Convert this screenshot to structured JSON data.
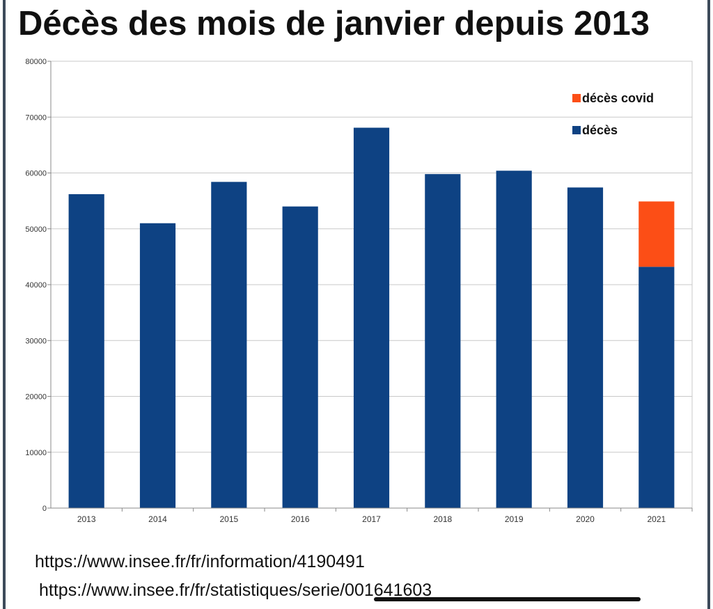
{
  "title": "Décès des mois de janvier depuis 2013",
  "sources": [
    "https://www.insee.fr/fr/information/4190491",
    "https://www.insee.fr/fr/statistiques/serie/001641603"
  ],
  "colors": {
    "deces": "#0e4283",
    "deces_covid": "#fc4e16",
    "grid": "#c8c8c8",
    "axis": "#888888"
  },
  "chart_data": {
    "type": "bar",
    "stacked": true,
    "title": "Décès des mois de janvier depuis 2013",
    "xlabel": "",
    "ylabel": "",
    "categories": [
      "2013",
      "2014",
      "2015",
      "2016",
      "2017",
      "2018",
      "2019",
      "2020",
      "2021"
    ],
    "series": [
      {
        "name": "décès",
        "color": "#0e4283",
        "values": [
          56200,
          51000,
          58400,
          54000,
          68100,
          59800,
          60400,
          57400,
          43200
        ]
      },
      {
        "name": "décès covid",
        "color": "#fc4e16",
        "values": [
          0,
          0,
          0,
          0,
          0,
          0,
          0,
          0,
          11700
        ]
      }
    ],
    "ylim": [
      0,
      80000
    ],
    "yticks": [
      0,
      10000,
      20000,
      30000,
      40000,
      50000,
      60000,
      70000,
      80000
    ],
    "grid": true,
    "legend": {
      "position": "top-right",
      "entries": [
        "décès covid",
        "décès"
      ]
    }
  }
}
